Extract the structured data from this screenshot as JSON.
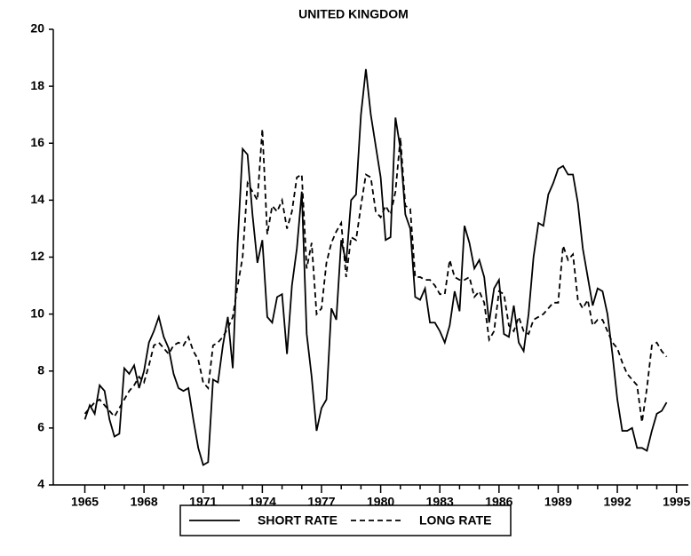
{
  "chart_data": {
    "type": "line",
    "title": "UNITED KINGDOM",
    "x": [
      1965,
      1965.25,
      1965.5,
      1965.75,
      1966,
      1966.25,
      1966.5,
      1966.75,
      1967,
      1967.25,
      1967.5,
      1967.75,
      1968,
      1968.25,
      1968.5,
      1968.75,
      1969,
      1969.25,
      1969.5,
      1969.75,
      1970,
      1970.25,
      1970.5,
      1970.75,
      1971,
      1971.25,
      1971.5,
      1971.75,
      1972,
      1972.25,
      1972.5,
      1972.75,
      1973,
      1973.25,
      1973.5,
      1973.75,
      1974,
      1974.25,
      1974.5,
      1974.75,
      1975,
      1975.25,
      1975.5,
      1975.75,
      1976,
      1976.25,
      1976.5,
      1976.75,
      1977,
      1977.25,
      1977.5,
      1977.75,
      1978,
      1978.25,
      1978.5,
      1978.75,
      1979,
      1979.25,
      1979.5,
      1979.75,
      1980,
      1980.25,
      1980.5,
      1980.75,
      1981,
      1981.25,
      1981.5,
      1981.75,
      1982,
      1982.25,
      1982.5,
      1982.75,
      1983,
      1983.25,
      1983.5,
      1983.75,
      1984,
      1984.25,
      1984.5,
      1984.75,
      1985,
      1985.25,
      1985.5,
      1985.75,
      1986,
      1986.25,
      1986.5,
      1986.75,
      1987,
      1987.25,
      1987.5,
      1987.75,
      1988,
      1988.25,
      1988.5,
      1988.75,
      1989,
      1989.25,
      1989.5,
      1989.75,
      1990,
      1990.25,
      1990.5,
      1990.75,
      1991,
      1991.25,
      1991.5,
      1991.75,
      1992,
      1992.25,
      1992.5,
      1992.75,
      1993,
      1993.25,
      1993.5,
      1993.75,
      1994,
      1994.25,
      1994.5
    ],
    "series": [
      {
        "name": "SHORT RATE",
        "color": "#000000",
        "dash": "solid",
        "values": [
          6.3,
          6.8,
          6.5,
          7.5,
          7.3,
          6.3,
          5.7,
          5.8,
          8.1,
          7.9,
          8.2,
          7.4,
          8.0,
          9.0,
          9.4,
          9.9,
          9.2,
          8.8,
          7.9,
          7.4,
          7.3,
          7.4,
          6.3,
          5.3,
          4.7,
          4.8,
          7.7,
          7.6,
          8.9,
          9.9,
          8.1,
          12.5,
          15.8,
          15.6,
          13.5,
          11.8,
          12.6,
          9.9,
          9.7,
          10.6,
          10.7,
          8.6,
          11.0,
          12.3,
          14.3,
          9.3,
          7.8,
          5.9,
          6.7,
          7.0,
          10.2,
          9.8,
          12.6,
          11.8,
          14.0,
          14.2,
          17.0,
          18.6,
          17.0,
          15.9,
          14.8,
          12.6,
          12.7,
          16.9,
          15.8,
          13.5,
          13.0,
          10.6,
          10.5,
          10.9,
          9.7,
          9.7,
          9.4,
          9.0,
          9.6,
          10.8,
          10.1,
          13.1,
          12.5,
          11.6,
          11.9,
          11.3,
          9.7,
          10.9,
          11.2,
          9.3,
          9.2,
          10.3,
          9.0,
          8.7,
          10.0,
          12.0,
          13.2,
          13.1,
          14.2,
          14.6,
          15.1,
          15.2,
          14.9,
          14.9,
          13.9,
          12.3,
          11.3,
          10.3,
          10.9,
          10.8,
          10.0,
          8.6,
          7.0,
          5.9,
          5.9,
          6.0,
          5.3,
          5.3,
          5.2,
          5.9,
          6.5,
          6.6,
          6.9
        ]
      },
      {
        "name": "LONG RATE",
        "color": "#000000",
        "dash": "dashed",
        "values": [
          6.5,
          6.7,
          6.9,
          7.0,
          6.8,
          6.6,
          6.4,
          6.7,
          7.0,
          7.3,
          7.5,
          7.8,
          7.6,
          8.2,
          8.9,
          9.0,
          8.8,
          8.6,
          8.9,
          9.0,
          8.9,
          9.2,
          8.7,
          8.4,
          7.6,
          7.4,
          8.9,
          9.0,
          9.2,
          9.5,
          9.9,
          11.0,
          12.0,
          14.6,
          14.3,
          14.0,
          16.5,
          12.8,
          13.8,
          13.6,
          14.0,
          13.0,
          13.6,
          14.8,
          14.9,
          11.6,
          12.5,
          10.0,
          10.2,
          11.8,
          12.5,
          12.9,
          13.2,
          11.3,
          12.7,
          12.6,
          13.8,
          14.9,
          14.8,
          13.6,
          13.4,
          13.8,
          13.5,
          14.3,
          16.2,
          13.8,
          13.7,
          11.3,
          11.3,
          11.2,
          11.2,
          11.0,
          10.7,
          10.7,
          11.9,
          11.3,
          11.2,
          11.2,
          11.3,
          10.6,
          10.8,
          10.4,
          9.1,
          9.4,
          10.8,
          10.7,
          9.6,
          9.4,
          9.9,
          9.4,
          9.3,
          9.8,
          9.9,
          10.0,
          10.2,
          10.4,
          10.4,
          12.4,
          11.9,
          12.1,
          10.5,
          10.2,
          10.5,
          9.6,
          9.8,
          9.8,
          9.4,
          9.0,
          8.8,
          8.3,
          7.9,
          7.7,
          7.5,
          6.2,
          7.4,
          8.9,
          9.0,
          8.7,
          8.5
        ]
      }
    ],
    "xlim": [
      1963.4,
      1995.6
    ],
    "xticks": [
      1965,
      1968,
      1971,
      1974,
      1977,
      1980,
      1983,
      1986,
      1989,
      1992,
      1995
    ],
    "xminorticks": [
      1966,
      1967,
      1969,
      1970,
      1972,
      1973,
      1975,
      1976,
      1978,
      1979,
      1981,
      1982,
      1984,
      1985,
      1987,
      1988,
      1990,
      1991,
      1993,
      1994
    ],
    "ylim": [
      4,
      20
    ],
    "yticks": [
      4,
      6,
      8,
      10,
      12,
      14,
      16,
      18,
      20
    ],
    "legend": "bottom"
  }
}
